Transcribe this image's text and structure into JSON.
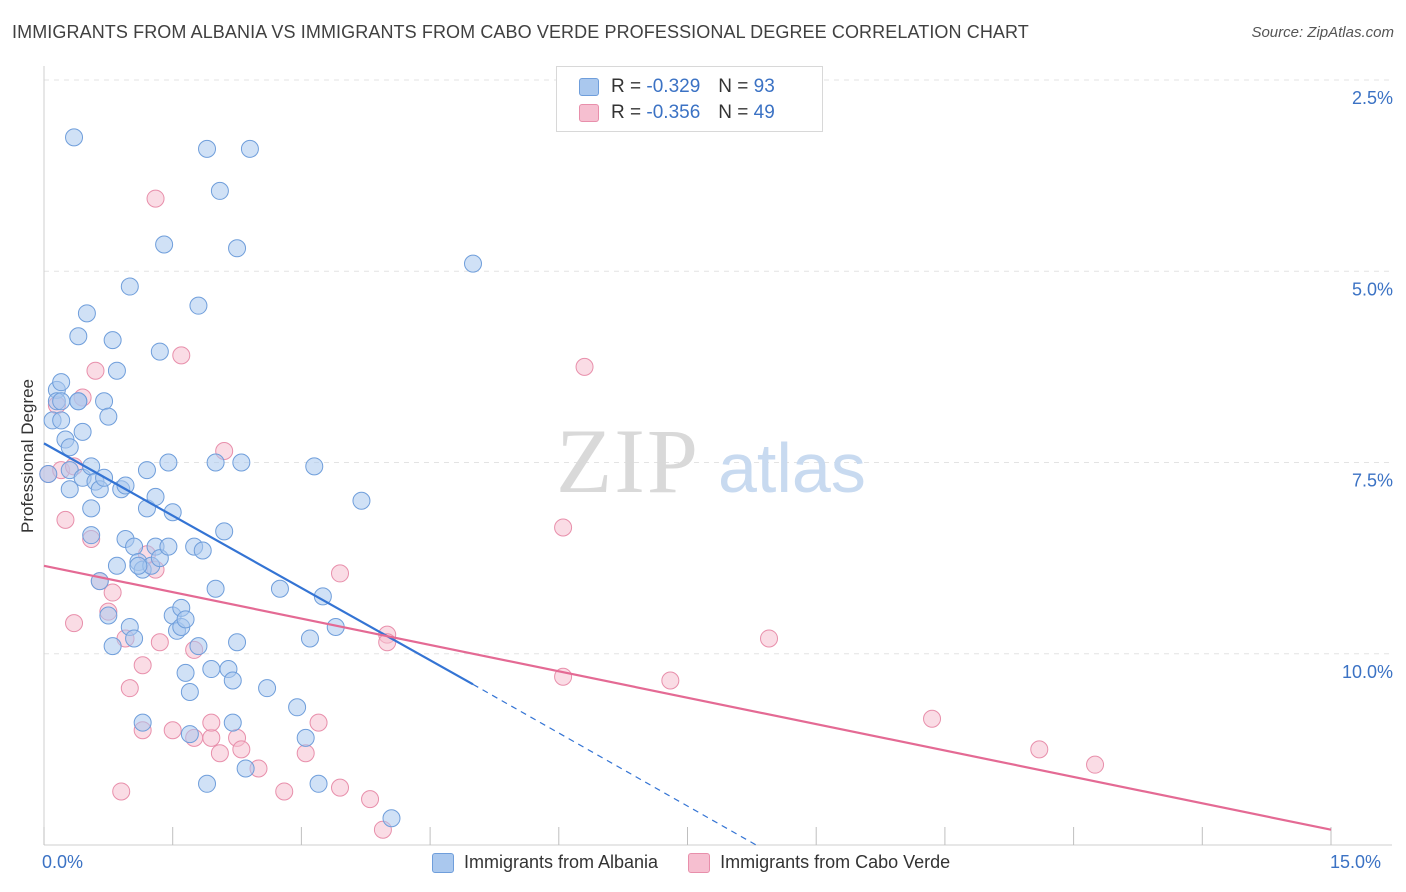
{
  "title": "IMMIGRANTS FROM ALBANIA VS IMMIGRANTS FROM CABO VERDE PROFESSIONAL DEGREE CORRELATION CHART",
  "source": "Source: ZipAtlas.com",
  "watermark": {
    "zip": "ZIP",
    "atlas": "atlas"
  },
  "legend": {
    "rows": [
      {
        "r_label": "R =",
        "r_value": "-0.329",
        "n_label": "N =",
        "n_value": "93"
      },
      {
        "r_label": "R =",
        "r_value": "-0.356",
        "n_label": "N =",
        "n_value": "49"
      }
    ]
  },
  "bottom_legend": [
    "Immigrants from Albania",
    "Immigrants from Cabo Verde"
  ],
  "x_tick_labels": {
    "min": "0.0%",
    "max": "15.0%"
  },
  "y_tick_labels": [
    "10.0%",
    "7.5%",
    "5.0%",
    "2.5%"
  ],
  "colors": {
    "albania_fill": "#aac8ee",
    "albania_stroke": "#6f9edb",
    "albania_line": "#3474d4",
    "cabo_fill": "#f6bfd0",
    "cabo_stroke": "#e88fab",
    "cabo_line": "#e46a94",
    "tick_label": "#3b72c4",
    "grid": "#e3e3e3"
  },
  "chart_data": {
    "type": "scatter",
    "title": "IMMIGRANTS FROM ALBANIA VS IMMIGRANTS FROM CABO VERDE PROFESSIONAL DEGREE CORRELATION CHART",
    "xlabel": "",
    "ylabel": "Professional Degree",
    "xlim": [
      0,
      15
    ],
    "ylim": [
      0,
      10
    ],
    "grid": true,
    "y_ticks": [
      2.5,
      5.0,
      7.5,
      10.0
    ],
    "legend_placement": "top-center",
    "series": [
      {
        "name": "Immigrants from Albania",
        "R": -0.329,
        "N": 93,
        "trend": {
          "x": [
            0.0,
            5.0
          ],
          "y": [
            5.25,
            2.1
          ],
          "dashed_extension_to": [
            8.3,
            0.0
          ]
        },
        "points": [
          [
            0.05,
            4.85
          ],
          [
            0.1,
            5.55
          ],
          [
            0.15,
            5.95
          ],
          [
            0.15,
            5.8
          ],
          [
            0.2,
            5.8
          ],
          [
            0.2,
            6.05
          ],
          [
            0.25,
            5.3
          ],
          [
            0.3,
            5.2
          ],
          [
            0.3,
            4.9
          ],
          [
            0.3,
            4.65
          ],
          [
            0.35,
            9.25
          ],
          [
            0.4,
            6.65
          ],
          [
            0.4,
            5.8
          ],
          [
            0.45,
            5.4
          ],
          [
            0.45,
            4.8
          ],
          [
            0.5,
            6.95
          ],
          [
            0.55,
            4.95
          ],
          [
            0.55,
            4.05
          ],
          [
            0.55,
            4.4
          ],
          [
            0.6,
            4.75
          ],
          [
            0.65,
            4.65
          ],
          [
            0.65,
            3.45
          ],
          [
            0.7,
            4.8
          ],
          [
            0.7,
            5.8
          ],
          [
            0.75,
            5.6
          ],
          [
            0.75,
            3.0
          ],
          [
            0.8,
            6.6
          ],
          [
            0.8,
            2.6
          ],
          [
            0.85,
            6.2
          ],
          [
            0.85,
            3.65
          ],
          [
            0.9,
            4.65
          ],
          [
            0.95,
            4.7
          ],
          [
            0.95,
            4.0
          ],
          [
            1.0,
            7.3
          ],
          [
            1.0,
            2.85
          ],
          [
            1.05,
            3.9
          ],
          [
            1.05,
            2.7
          ],
          [
            1.1,
            3.7
          ],
          [
            1.15,
            1.6
          ],
          [
            1.15,
            3.6
          ],
          [
            1.2,
            4.9
          ],
          [
            1.2,
            4.4
          ],
          [
            1.25,
            3.65
          ],
          [
            1.3,
            4.55
          ],
          [
            1.3,
            3.9
          ],
          [
            1.35,
            6.45
          ],
          [
            1.35,
            3.75
          ],
          [
            1.4,
            7.85
          ],
          [
            1.45,
            3.9
          ],
          [
            1.45,
            5.0
          ],
          [
            1.5,
            4.35
          ],
          [
            1.5,
            3.0
          ],
          [
            1.55,
            2.8
          ],
          [
            1.6,
            3.1
          ],
          [
            1.6,
            2.85
          ],
          [
            1.65,
            2.25
          ],
          [
            1.65,
            2.95
          ],
          [
            1.7,
            1.45
          ],
          [
            1.7,
            2.0
          ],
          [
            1.75,
            3.9
          ],
          [
            1.8,
            7.05
          ],
          [
            1.8,
            2.6
          ],
          [
            1.85,
            3.85
          ],
          [
            1.9,
            9.1
          ],
          [
            1.9,
            0.8
          ],
          [
            1.95,
            2.3
          ],
          [
            2.0,
            5.0
          ],
          [
            2.0,
            3.35
          ],
          [
            2.05,
            8.55
          ],
          [
            2.1,
            4.1
          ],
          [
            2.15,
            2.3
          ],
          [
            2.2,
            1.6
          ],
          [
            2.2,
            2.15
          ],
          [
            2.25,
            2.65
          ],
          [
            2.25,
            7.8
          ],
          [
            2.3,
            5.0
          ],
          [
            2.35,
            1.0
          ],
          [
            2.4,
            9.1
          ],
          [
            2.6,
            2.05
          ],
          [
            2.75,
            3.35
          ],
          [
            2.95,
            1.8
          ],
          [
            3.05,
            1.4
          ],
          [
            3.1,
            2.7
          ],
          [
            3.15,
            4.95
          ],
          [
            3.2,
            0.8
          ],
          [
            3.25,
            3.25
          ],
          [
            3.4,
            2.85
          ],
          [
            3.7,
            4.5
          ],
          [
            4.05,
            0.35
          ],
          [
            5.0,
            7.6
          ],
          [
            0.2,
            5.55
          ],
          [
            0.4,
            5.8
          ],
          [
            1.1,
            3.65
          ]
        ]
      },
      {
        "name": "Immigrants from Cabo Verde",
        "R": -0.356,
        "N": 49,
        "trend": {
          "x": [
            0.0,
            15.0
          ],
          "y": [
            3.65,
            0.2
          ]
        },
        "points": [
          [
            0.05,
            4.85
          ],
          [
            0.15,
            5.75
          ],
          [
            0.2,
            4.9
          ],
          [
            0.25,
            4.25
          ],
          [
            0.35,
            4.95
          ],
          [
            0.35,
            2.9
          ],
          [
            0.45,
            5.85
          ],
          [
            0.55,
            4.0
          ],
          [
            0.6,
            6.2
          ],
          [
            0.65,
            3.45
          ],
          [
            0.75,
            3.05
          ],
          [
            0.8,
            3.3
          ],
          [
            0.9,
            0.7
          ],
          [
            0.95,
            2.7
          ],
          [
            1.0,
            2.05
          ],
          [
            1.15,
            1.5
          ],
          [
            1.15,
            2.35
          ],
          [
            1.2,
            3.8
          ],
          [
            1.3,
            3.6
          ],
          [
            1.35,
            2.65
          ],
          [
            1.3,
            8.45
          ],
          [
            1.5,
            1.5
          ],
          [
            1.6,
            6.4
          ],
          [
            1.75,
            1.4
          ],
          [
            1.75,
            2.55
          ],
          [
            1.95,
            1.4
          ],
          [
            1.95,
            1.6
          ],
          [
            2.05,
            1.2
          ],
          [
            2.1,
            5.15
          ],
          [
            2.25,
            1.4
          ],
          [
            2.3,
            1.25
          ],
          [
            2.5,
            1.0
          ],
          [
            2.8,
            0.7
          ],
          [
            3.05,
            1.2
          ],
          [
            3.2,
            1.6
          ],
          [
            3.45,
            3.55
          ],
          [
            3.45,
            0.75
          ],
          [
            3.8,
            0.6
          ],
          [
            3.95,
            0.2
          ],
          [
            4.0,
            2.75
          ],
          [
            4.0,
            2.65
          ],
          [
            6.05,
            4.15
          ],
          [
            6.05,
            2.2
          ],
          [
            6.3,
            6.25
          ],
          [
            7.3,
            2.15
          ],
          [
            8.45,
            2.7
          ],
          [
            10.35,
            1.65
          ],
          [
            11.6,
            1.25
          ],
          [
            12.25,
            1.05
          ]
        ]
      }
    ]
  }
}
